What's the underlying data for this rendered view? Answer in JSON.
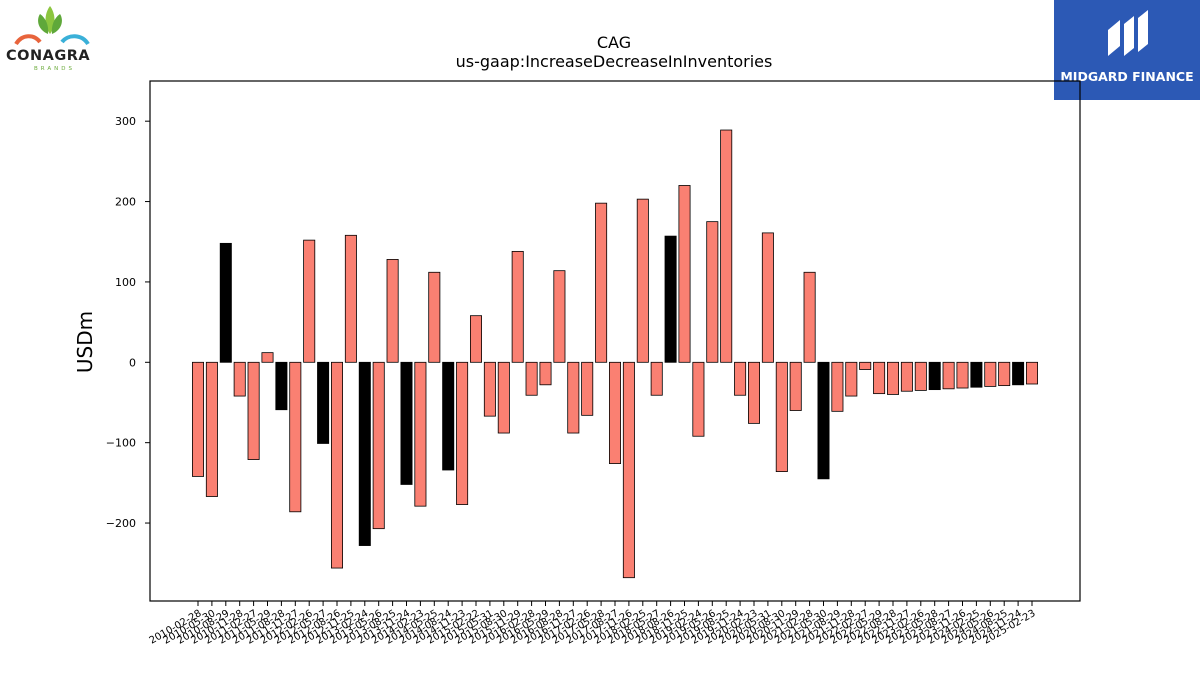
{
  "branding": {
    "left_logo_text": "CONAGRA",
    "left_logo_subtext": "BRANDS",
    "right_logo_text": "MIDGARD FINANCE",
    "right_bg_color": "#2c59b5"
  },
  "chart_data": {
    "type": "bar",
    "title": "CAG",
    "subtitle": "us-gaap:IncreaseDecreaseInInventories",
    "xlabel": "",
    "ylabel": "USDm",
    "ylim": [
      -297,
      350
    ],
    "yticks": [
      -200,
      -100,
      0,
      100,
      200,
      300
    ],
    "grid": false,
    "colors": {
      "default": "#fa8072",
      "highlight": "#000000"
    },
    "categories": [
      "2010-02-28",
      "2010-05-30",
      "2010-08-29",
      "2010-11-28",
      "2011-02-27",
      "2011-05-29",
      "2011-08-28",
      "2011-11-27",
      "2012-02-26",
      "2012-05-27",
      "2012-08-26",
      "2012-11-25",
      "2013-02-24",
      "2013-05-26",
      "2013-08-25",
      "2013-11-24",
      "2014-02-23",
      "2014-05-25",
      "2014-08-24",
      "2014-11-23",
      "2015-02-22",
      "2015-05-31",
      "2015-08-30",
      "2015-11-29",
      "2016-02-28",
      "2016-05-29",
      "2016-08-28",
      "2016-11-27",
      "2017-02-26",
      "2017-05-28",
      "2017-08-27",
      "2017-11-26",
      "2018-02-25",
      "2018-05-27",
      "2018-08-26",
      "2018-11-25",
      "2019-02-24",
      "2019-05-26",
      "2019-08-25",
      "2019-11-24",
      "2020-02-23",
      "2020-05-31",
      "2020-08-30",
      "2020-11-29",
      "2021-02-28",
      "2021-05-30",
      "2021-08-29",
      "2021-11-28",
      "2022-02-27",
      "2022-05-29",
      "2022-08-28",
      "2022-11-27",
      "2023-02-26",
      "2023-05-28",
      "2023-08-27",
      "2023-11-26",
      "2024-02-25",
      "2024-05-26",
      "2024-08-25",
      "2024-11-24",
      "2025-02-23"
    ],
    "values": [
      -142,
      -167,
      148,
      -42,
      -121,
      12,
      -59,
      -186,
      152,
      -101,
      -256,
      158,
      -228,
      -207,
      128,
      -152,
      -179,
      112,
      -134,
      -177,
      58,
      -67,
      -88,
      138,
      -41,
      -28,
      114,
      -88,
      -66,
      198,
      -126,
      -268,
      203,
      -41,
      157,
      220,
      -92,
      175,
      289,
      -41,
      -76,
      161,
      -136,
      -60,
      112,
      -145,
      -61,
      -42,
      -9,
      -39,
      -40,
      -36,
      -35,
      -34,
      -33,
      -32,
      -31,
      -30,
      -29,
      -28,
      -27
    ],
    "highlight": [
      2,
      6,
      9,
      12,
      15,
      18,
      34,
      45,
      53,
      56,
      59
    ]
  }
}
